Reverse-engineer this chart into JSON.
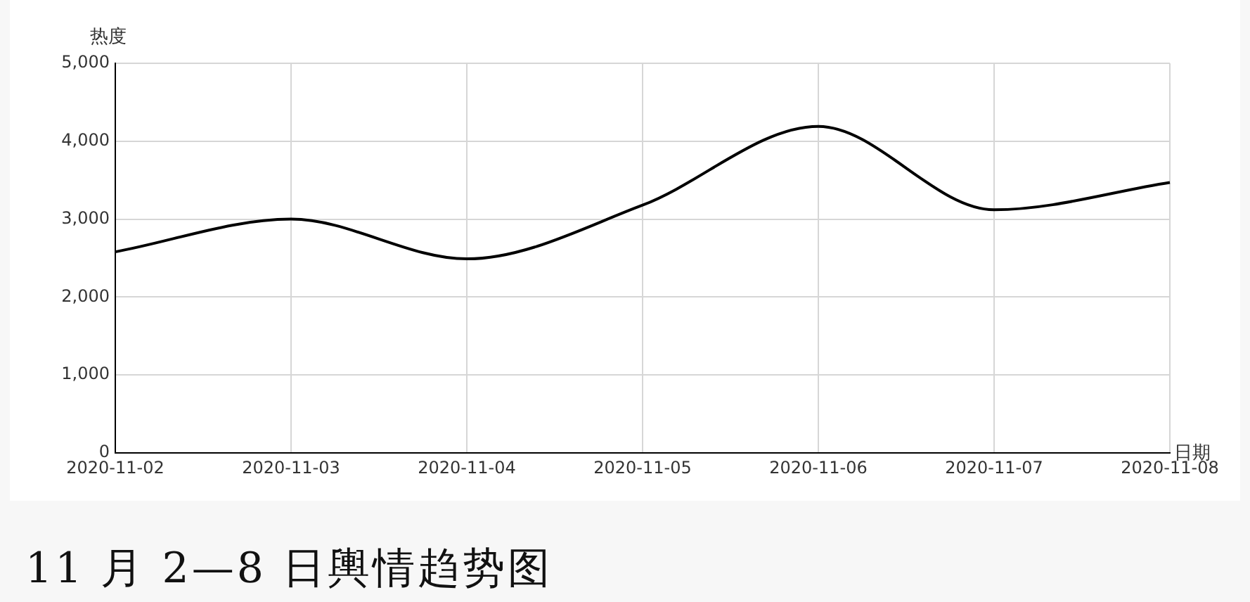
{
  "chart_data": {
    "type": "line",
    "title": "11 月 2—8 日輿情趋势图",
    "xlabel": "日期",
    "ylabel": "热度",
    "categories": [
      "2020-11-02",
      "2020-11-03",
      "2020-11-04",
      "2020-11-05",
      "2020-11-06",
      "2020-11-07",
      "2020-11-08"
    ],
    "series": [
      {
        "color": "#000000",
        "values": [
          2580,
          3000,
          2490,
          3180,
          4190,
          3120,
          3470
        ]
      }
    ],
    "ylim": [
      0,
      5000
    ],
    "yticks": [
      {
        "value": 0,
        "label": "0"
      },
      {
        "value": 1000,
        "label": "1,000"
      },
      {
        "value": 2000,
        "label": "2,000"
      },
      {
        "value": 3000,
        "label": "3,000"
      },
      {
        "value": 4000,
        "label": "4,000"
      },
      {
        "value": 5000,
        "label": "5,000"
      }
    ],
    "grid": true,
    "legend": false,
    "marker": "none",
    "line_style": "solid"
  }
}
